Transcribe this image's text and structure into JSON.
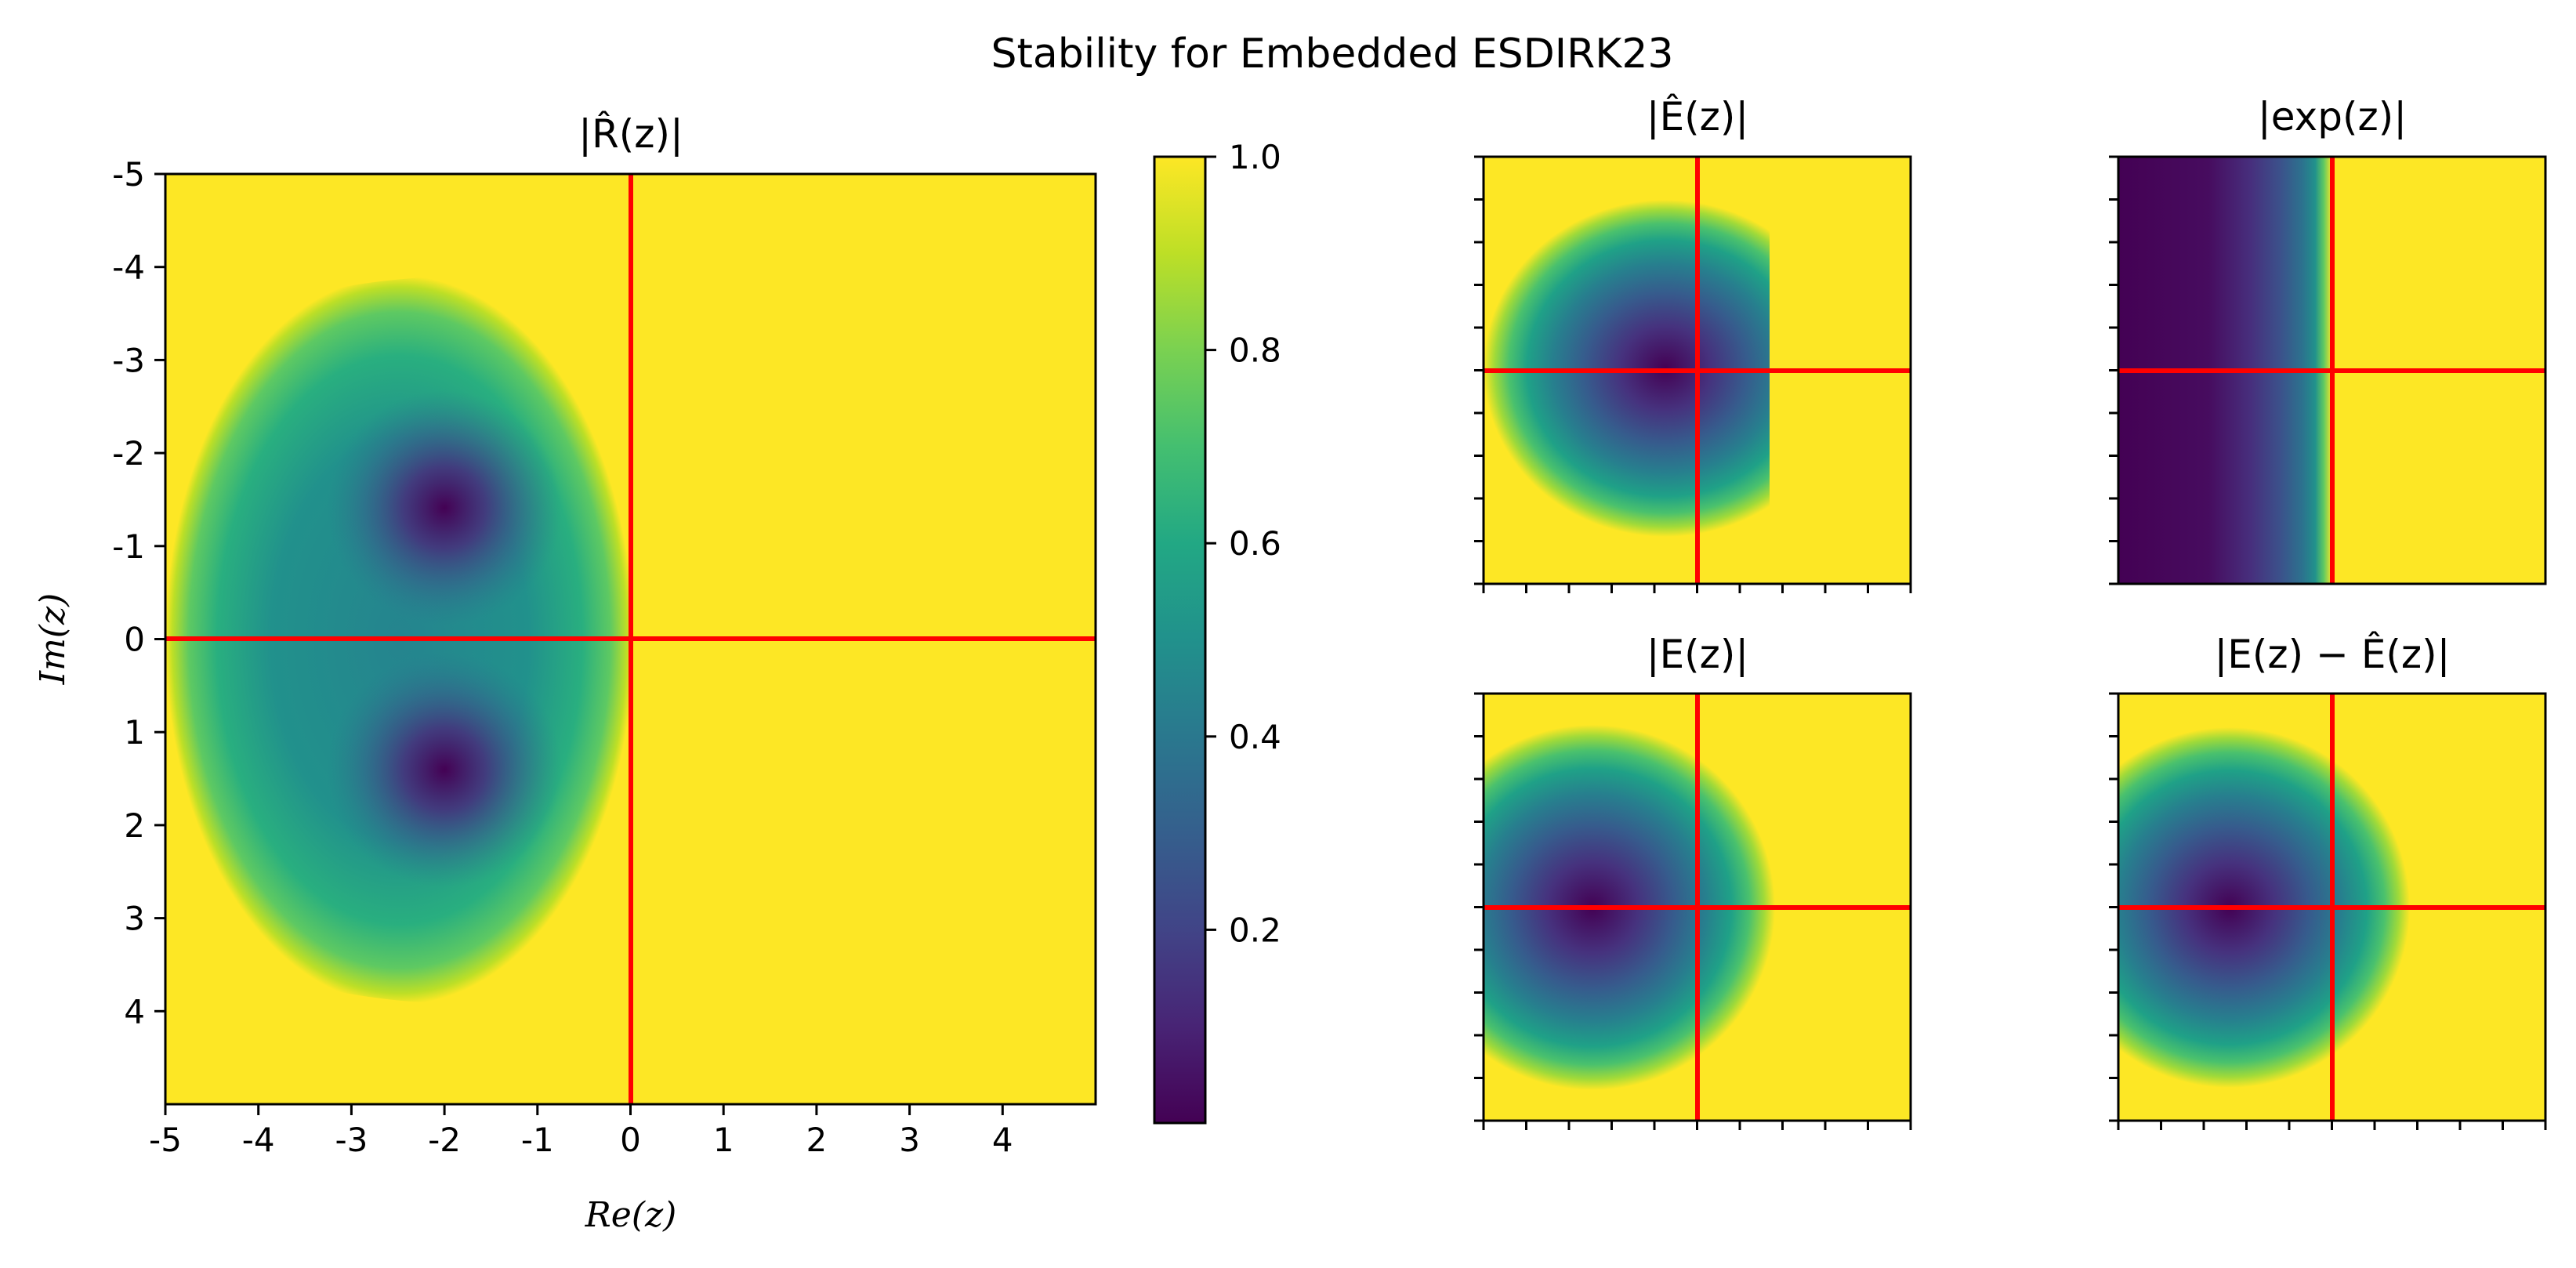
{
  "chart_data": {
    "type": "heatmap",
    "title": "Stability for Embedded ESDIRK23",
    "colormap": "viridis",
    "colors": {
      "guide_lines": "#ff0000",
      "low": "#440154",
      "mid": "#21918c",
      "high": "#fde725"
    },
    "colorbar": {
      "range": [
        0,
        1.0
      ],
      "ticks": [
        "0.2",
        "0.4",
        "0.6",
        "0.8",
        "1.0"
      ],
      "tick_values": [
        0.2,
        0.4,
        0.6,
        0.8,
        1.0
      ]
    },
    "main": {
      "title": "|R̂(z)|",
      "xlabel": "Re(z)",
      "ylabel": "Im(z)",
      "xlim": [
        -5,
        5
      ],
      "ylim": [
        -5,
        5
      ],
      "y_inverted": true,
      "xticks": [
        "-5",
        "-4",
        "-3",
        "-2",
        "-1",
        "0",
        "1",
        "2",
        "3",
        "4"
      ],
      "yticks": [
        "-5",
        "-4",
        "-3",
        "-2",
        "-1",
        "0",
        "1",
        "2",
        "3",
        "4"
      ],
      "tick_values": [
        -5,
        -4,
        -3,
        -2,
        -1,
        0,
        1,
        2,
        3,
        4
      ],
      "guide_lines": {
        "x": 0,
        "y": 0
      },
      "minima": [
        {
          "re": -2.0,
          "im": -1.4
        },
        {
          "re": -2.0,
          "im": 1.4
        }
      ]
    },
    "panels": [
      {
        "id": "e-hat",
        "title": "|Ê(z)|"
      },
      {
        "id": "exp",
        "title": "|exp(z)|"
      },
      {
        "id": "e",
        "title": "|E(z)|"
      },
      {
        "id": "e-diff",
        "title": "|E(z) − Ê(z)|"
      }
    ]
  }
}
